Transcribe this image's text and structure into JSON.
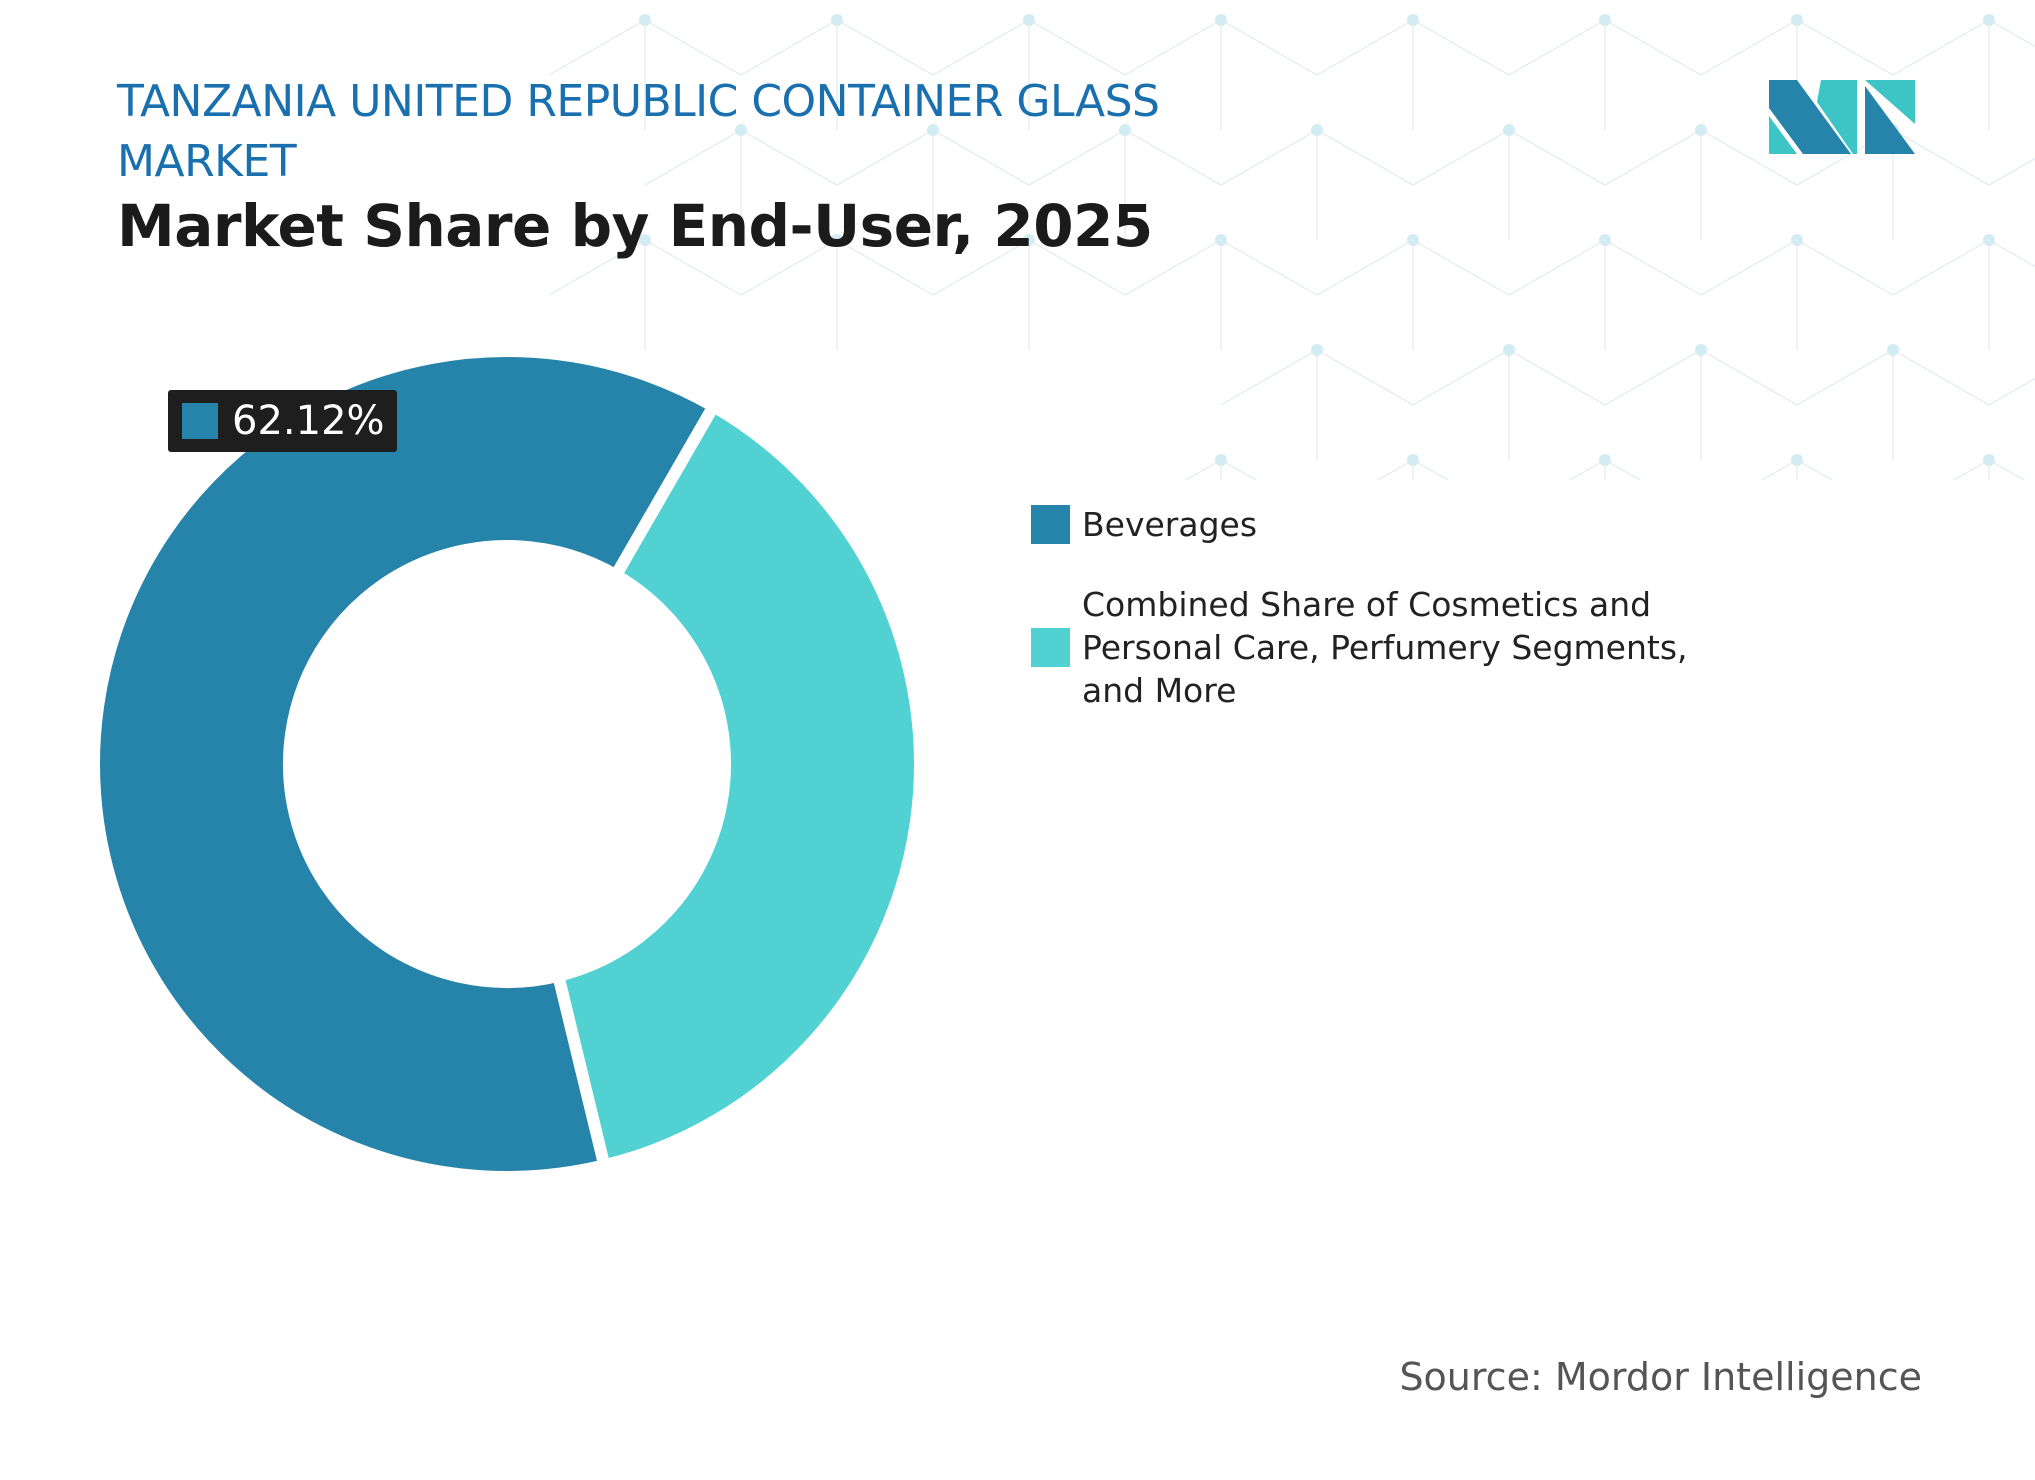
{
  "header": {
    "title": "TANZANIA UNITED REPUBLIC CONTAINER GLASS MARKET",
    "subtitle": "Market Share by End-User, 2025"
  },
  "logo": {
    "name": "mordor-intelligence-logo",
    "colors": [
      "#2683a9",
      "#3cc5c4"
    ]
  },
  "chart_data": {
    "type": "pie",
    "variant": "donut",
    "title": "Market Share by End-User, 2025",
    "series": [
      {
        "name": "Beverages",
        "value": 62.12,
        "color": "#2683a9"
      },
      {
        "name": "Combined Share of Cosmetics and Personal Care, Perfumery Segments, and More",
        "value": 37.88,
        "color": "#51d1d2"
      }
    ],
    "data_labels": [
      {
        "series": "Beverages",
        "text": "62.12%"
      }
    ],
    "legend_position": "right"
  },
  "source": "Source: Mordor Intelligence"
}
